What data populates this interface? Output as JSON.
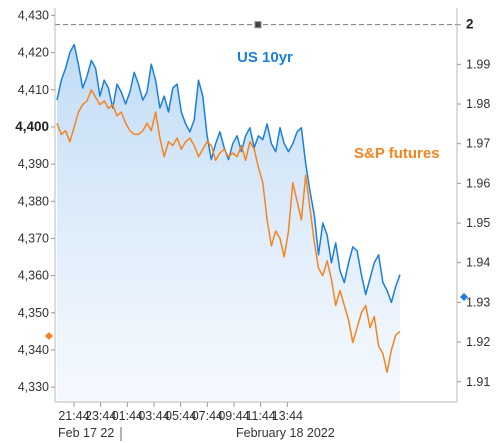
{
  "chart_data": {
    "type": "line",
    "colors": {
      "us10yr": "#1a7fdc",
      "sp_futures": "#f5841f",
      "area_top": "#bcd9f5",
      "area_bottom": "#eef5fd",
      "reference_line": "#777777"
    },
    "x_axis": {
      "ticks": [
        "21:44",
        "23:44",
        "01:44",
        "03:44",
        "05:44",
        "07:44",
        "09:44",
        "11:44",
        "13:44"
      ],
      "date_labels": [
        "Feb 17 22",
        "February 18 2022"
      ]
    },
    "left_axis": {
      "ticks": [
        "4,330",
        "4,340",
        "4,350",
        "4,360",
        "4,370",
        "4,380",
        "4,390",
        "4,400",
        "4,410",
        "4,420",
        "4,430"
      ],
      "highlight_tick": "4,400",
      "range": [
        4326,
        4432
      ]
    },
    "right_axis": {
      "ticks": [
        "1.91",
        "1.92",
        "1.93",
        "1.94",
        "1.95",
        "1.96",
        "1.97",
        "1.98",
        "1.99",
        "2"
      ],
      "highlight_tick": "2",
      "range": [
        1.9049,
        2.0042
      ],
      "reference_value": 2
    },
    "series": [
      {
        "name": "US 10yr",
        "axis": "right",
        "hours": [
          0,
          0.3,
          0.6,
          0.9,
          1.2,
          1.5,
          1.8,
          2.1,
          2.4,
          2.7,
          3.0,
          3.3,
          3.6,
          3.9,
          4.2,
          4.5,
          4.8,
          5.1,
          5.4,
          5.7,
          6.0,
          6.3,
          6.6,
          6.9,
          7.2,
          7.5,
          7.8,
          8.1,
          8.4,
          8.7,
          9.0,
          9.3,
          9.6,
          9.9,
          10.2,
          10.5,
          10.8,
          11.1,
          11.4,
          11.7,
          12.0,
          12.3,
          12.6,
          12.9,
          13.2,
          13.5,
          13.8,
          14.1,
          14.4,
          14.7,
          15.0,
          15.3,
          15.6,
          15.9,
          16.2,
          16.5,
          16.8,
          17.1,
          17.4,
          17.7,
          18.0,
          18.3,
          18.6,
          18.9,
          19.2,
          19.5,
          19.8,
          20.1,
          20.4,
          20.7,
          21.0,
          21.3,
          21.6,
          21.9,
          22.2,
          22.5,
          22.8,
          23.1,
          23.4,
          23.7,
          24.0
        ],
        "values": [
          1.981,
          1.986,
          1.989,
          1.993,
          1.995,
          1.99,
          1.984,
          1.987,
          1.991,
          1.989,
          1.982,
          1.986,
          1.984,
          1.979,
          1.985,
          1.983,
          1.98,
          1.983,
          1.988,
          1.985,
          1.981,
          1.983,
          1.99,
          1.986,
          1.979,
          1.982,
          1.978,
          1.984,
          1.985,
          1.978,
          1.975,
          1.973,
          1.976,
          1.986,
          1.982,
          1.972,
          1.966,
          1.97,
          1.973,
          1.969,
          1.966,
          1.97,
          1.972,
          1.968,
          1.972,
          1.974,
          1.969,
          1.972,
          1.971,
          1.975,
          1.97,
          1.968,
          1.974,
          1.97,
          1.968,
          1.97,
          1.973,
          1.974,
          1.965,
          1.958,
          1.952,
          1.942,
          1.95,
          1.947,
          1.94,
          1.945,
          1.938,
          1.935,
          1.94,
          1.944,
          1.943,
          1.937,
          1.932,
          1.936,
          1.94,
          1.942,
          1.935,
          1.933,
          1.93,
          1.934,
          1.937
        ]
      },
      {
        "name": "S&P futures",
        "axis": "left",
        "hours": [
          0,
          0.3,
          0.6,
          0.9,
          1.2,
          1.5,
          1.8,
          2.1,
          2.4,
          2.7,
          3.0,
          3.3,
          3.6,
          3.9,
          4.2,
          4.5,
          4.8,
          5.1,
          5.4,
          5.7,
          6.0,
          6.3,
          6.6,
          6.9,
          7.2,
          7.5,
          7.8,
          8.1,
          8.4,
          8.7,
          9.0,
          9.3,
          9.6,
          9.9,
          10.2,
          10.5,
          10.8,
          11.1,
          11.4,
          11.7,
          12.0,
          12.3,
          12.6,
          12.9,
          13.2,
          13.5,
          13.8,
          14.1,
          14.4,
          14.7,
          15.0,
          15.3,
          15.6,
          15.9,
          16.2,
          16.5,
          16.8,
          17.1,
          17.4,
          17.7,
          18.0,
          18.3,
          18.6,
          18.9,
          19.2,
          19.5,
          19.8,
          20.1,
          20.4,
          20.7,
          21.0,
          21.3,
          21.6,
          21.9,
          22.2,
          22.5,
          22.8,
          23.1,
          23.4,
          23.7,
          24.0
        ],
        "values": [
          4401,
          4398,
          4399,
          4396,
          4400,
          4404,
          4406,
          4407,
          4410,
          4408,
          4406,
          4407,
          4405,
          4406,
          4403,
          4404,
          4401,
          4399,
          4398,
          4398,
          4399,
          4401,
          4399,
          4404,
          4397,
          4392,
          4396,
          4395,
          4397,
          4394,
          4396,
          4397,
          4395,
          4392,
          4394,
          4396,
          4395,
          4391,
          4393,
          4394,
          4392,
          4393,
          4392,
          4395,
          4391,
          4396,
          4394,
          4389,
          4385,
          4375,
          4368,
          4372,
          4370,
          4365,
          4372,
          4385,
          4380,
          4375,
          4387,
          4378,
          4369,
          4362,
          4360,
          4364,
          4359,
          4352,
          4356,
          4352,
          4348,
          4342,
          4346,
          4350,
          4352,
          4346,
          4349,
          4341,
          4339,
          4334,
          4340,
          4344,
          4345
        ]
      }
    ],
    "labels": {
      "us10yr": "US 10yr",
      "sp_futures": "S&P futures"
    },
    "grid": false
  }
}
